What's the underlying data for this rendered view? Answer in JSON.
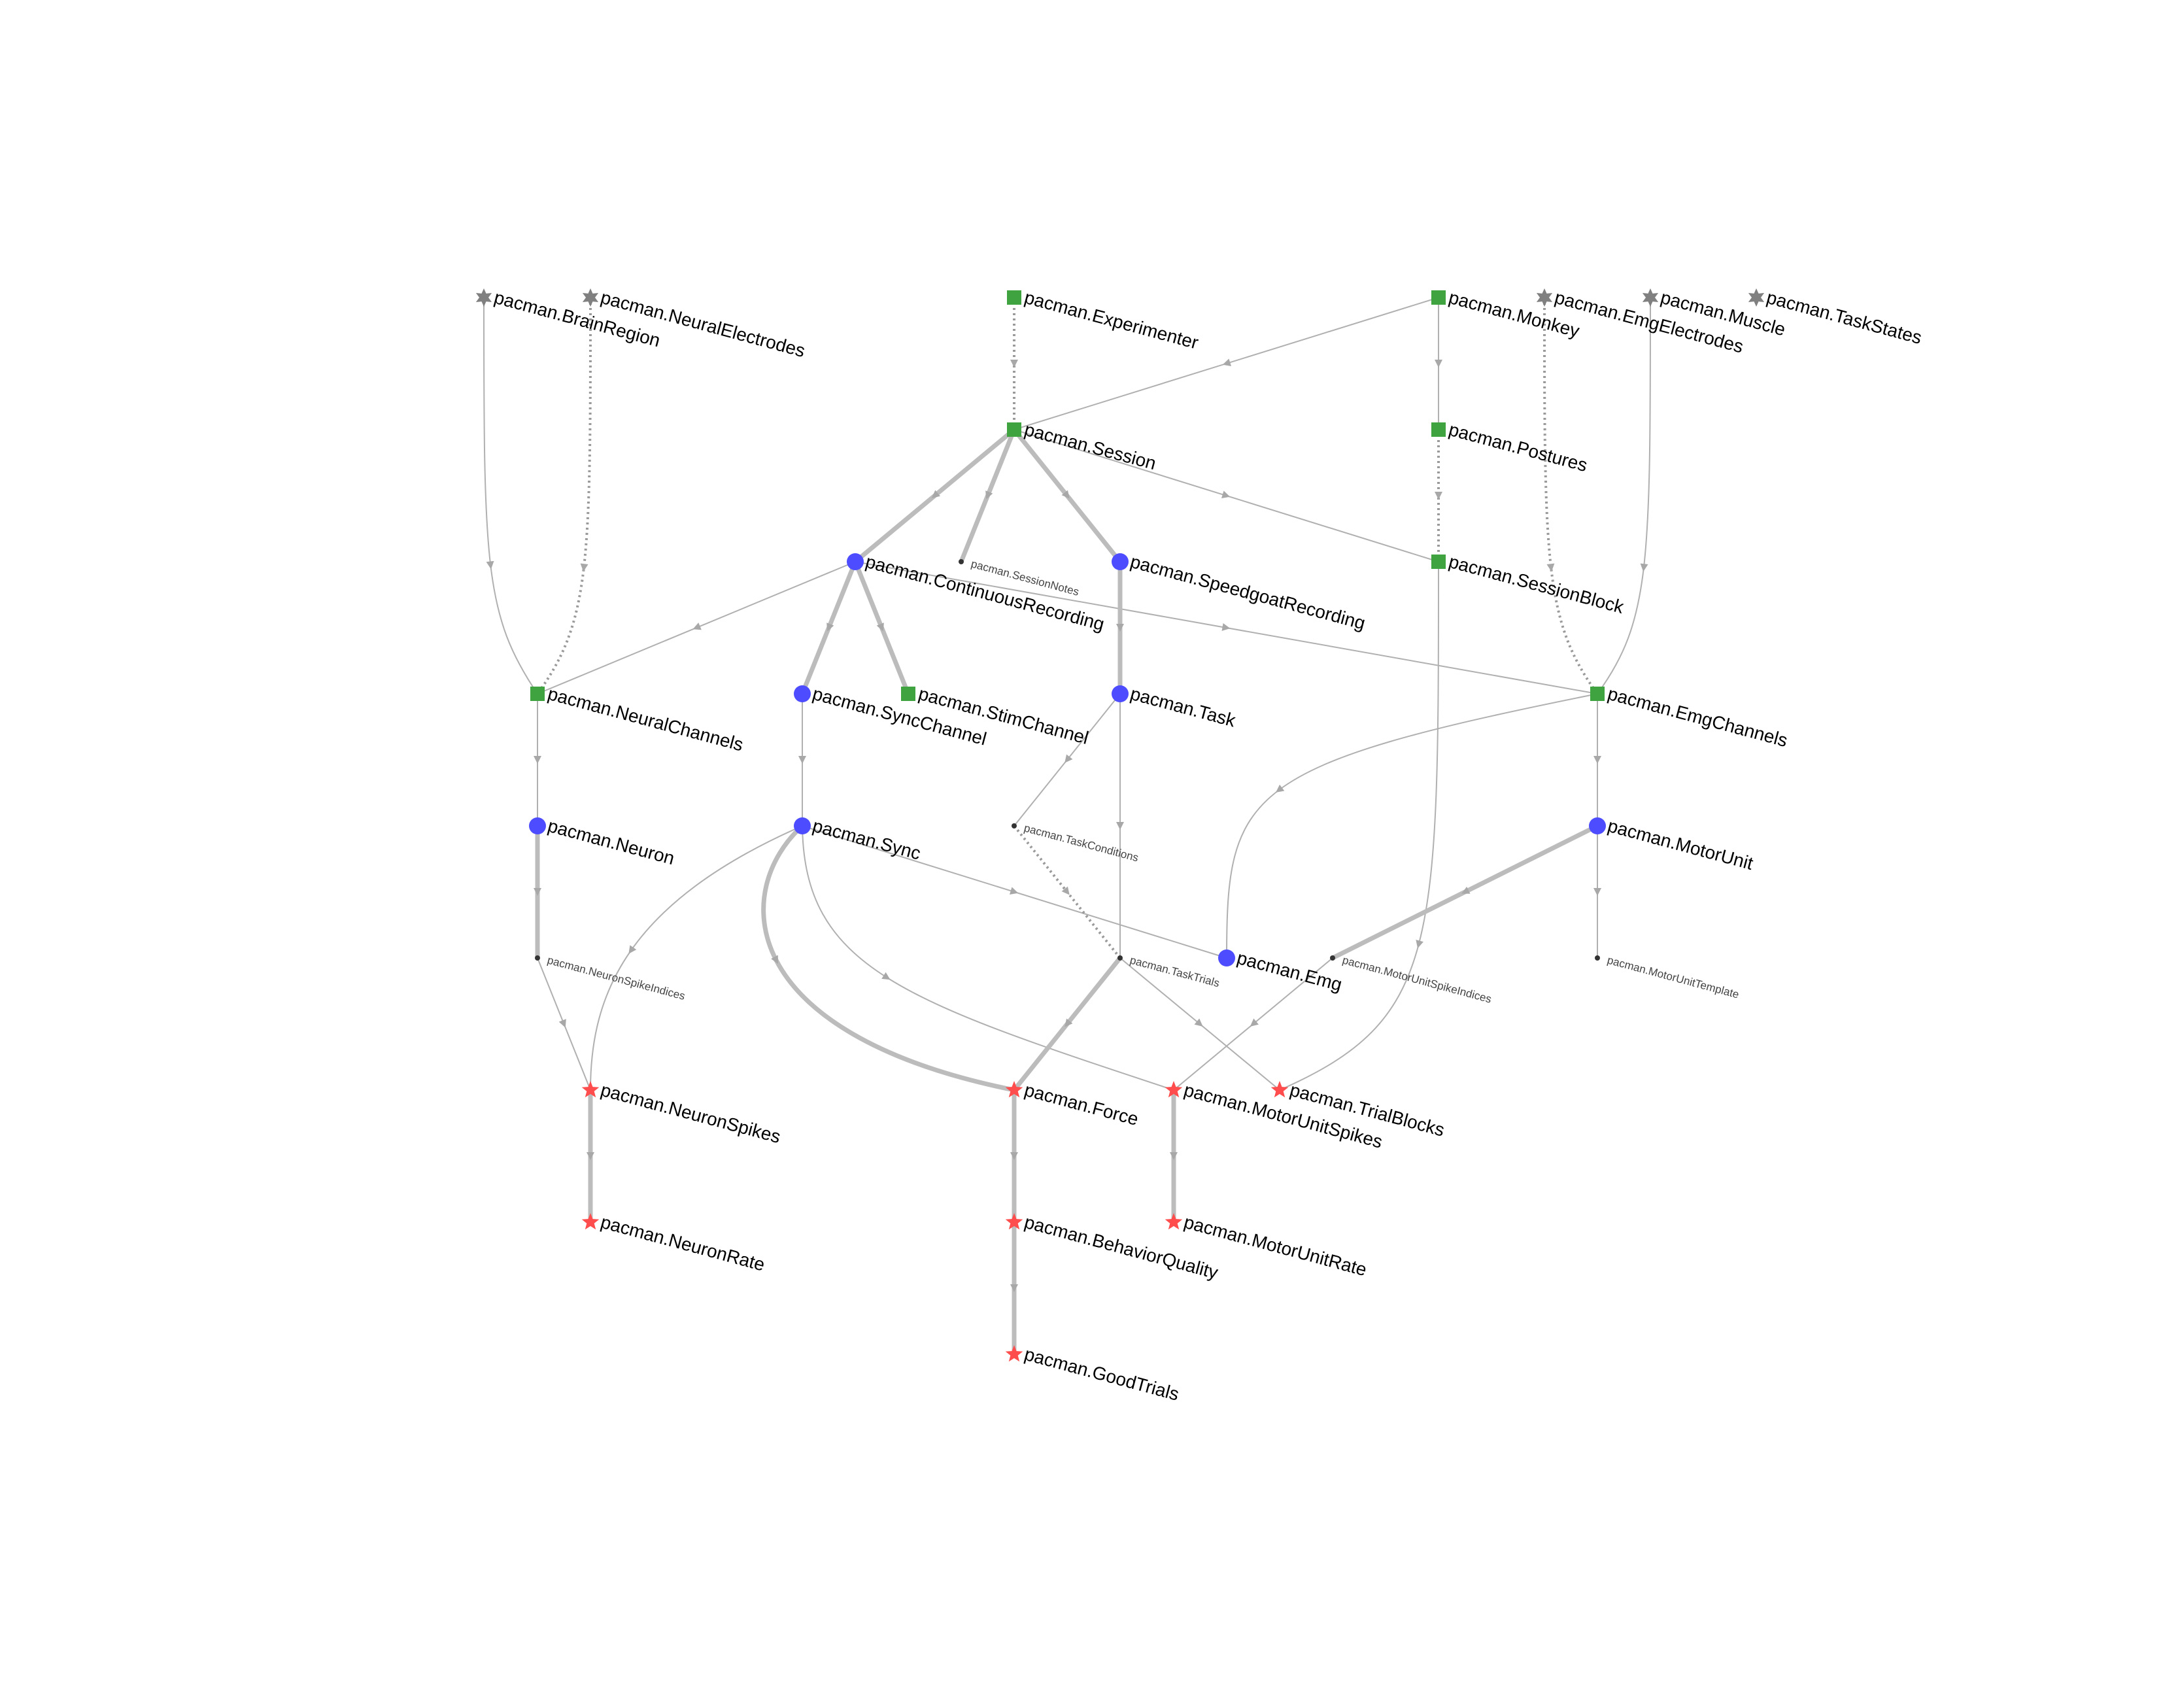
{
  "colors": {
    "lookup": "#808080",
    "manual": "#3fa33f",
    "imported": "#4d4dff",
    "computed": "#ff4d4d",
    "part": "#333333",
    "edge": "#b0b0b0"
  },
  "legend_types": {
    "star6": "lookup (gray six-point star)",
    "square": "manual (green square)",
    "circle": "imported (blue circle)",
    "star5": "computed (red star)",
    "dot": "part table (small dark dot)"
  },
  "nodes": [
    {
      "id": "pacman.BrainRegion",
      "label": "pacman.BrainRegion",
      "type": "star6"
    },
    {
      "id": "pacman.NeuralElectrodes",
      "label": "pacman.NeuralElectrodes",
      "type": "star6"
    },
    {
      "id": "pacman.Experimenter",
      "label": "pacman.Experimenter",
      "type": "square"
    },
    {
      "id": "pacman.Monkey",
      "label": "pacman.Monkey",
      "type": "square"
    },
    {
      "id": "pacman.EmgElectrodes",
      "label": "pacman.EmgElectrodes",
      "type": "star6"
    },
    {
      "id": "pacman.Muscle",
      "label": "pacman.Muscle",
      "type": "star6"
    },
    {
      "id": "pacman.TaskStates",
      "label": "pacman.TaskStates",
      "type": "star6"
    },
    {
      "id": "pacman.Session",
      "label": "pacman.Session",
      "type": "square"
    },
    {
      "id": "pacman.Postures",
      "label": "pacman.Postures",
      "type": "square"
    },
    {
      "id": "pacman.ContinuousRecording",
      "label": "pacman.ContinuousRecording",
      "type": "circle"
    },
    {
      "id": "pacman.SessionNotes",
      "label": "pacman.SessionNotes",
      "type": "dot"
    },
    {
      "id": "pacman.SpeedgoatRecording",
      "label": "pacman.SpeedgoatRecording",
      "type": "circle"
    },
    {
      "id": "pacman.SessionBlock",
      "label": "pacman.SessionBlock",
      "type": "square"
    },
    {
      "id": "pacman.NeuralChannels",
      "label": "pacman.NeuralChannels",
      "type": "square"
    },
    {
      "id": "pacman.SyncChannel",
      "label": "pacman.SyncChannel",
      "type": "circle"
    },
    {
      "id": "pacman.StimChannel",
      "label": "pacman.StimChannel",
      "type": "square"
    },
    {
      "id": "pacman.Task",
      "label": "pacman.Task",
      "type": "circle"
    },
    {
      "id": "pacman.EmgChannels",
      "label": "pacman.EmgChannels",
      "type": "square"
    },
    {
      "id": "pacman.Neuron",
      "label": "pacman.Neuron",
      "type": "circle"
    },
    {
      "id": "pacman.Sync",
      "label": "pacman.Sync",
      "type": "circle"
    },
    {
      "id": "pacman.TaskConditions",
      "label": "pacman.TaskConditions",
      "type": "dot"
    },
    {
      "id": "pacman.MotorUnit",
      "label": "pacman.MotorUnit",
      "type": "circle"
    },
    {
      "id": "pacman.NeuronSpikeIndices",
      "label": "pacman.NeuronSpikeIndices",
      "type": "dot"
    },
    {
      "id": "pacman.TaskTrials",
      "label": "pacman.TaskTrials",
      "type": "dot"
    },
    {
      "id": "pacman.Emg",
      "label": "pacman.Emg",
      "type": "circle"
    },
    {
      "id": "pacman.MotorUnitSpikeIndices",
      "label": "pacman.MotorUnitSpikeIndices",
      "type": "dot"
    },
    {
      "id": "pacman.MotorUnitTemplate",
      "label": "pacman.MotorUnitTemplate",
      "type": "dot"
    },
    {
      "id": "pacman.NeuronSpikes",
      "label": "pacman.NeuronSpikes",
      "type": "star5"
    },
    {
      "id": "pacman.Force",
      "label": "pacman.Force",
      "type": "star5"
    },
    {
      "id": "pacman.MotorUnitSpikes",
      "label": "pacman.MotorUnitSpikes",
      "type": "star5"
    },
    {
      "id": "pacman.TrialBlocks",
      "label": "pacman.TrialBlocks",
      "type": "star5"
    },
    {
      "id": "pacman.NeuronRate",
      "label": "pacman.NeuronRate",
      "type": "star5"
    },
    {
      "id": "pacman.MotorUnitRate",
      "label": "pacman.MotorUnitRate",
      "type": "star5"
    },
    {
      "id": "pacman.BehaviorQuality",
      "label": "pacman.BehaviorQuality",
      "type": "star5"
    },
    {
      "id": "pacman.GoodTrials",
      "label": "pacman.GoodTrials",
      "type": "star5"
    }
  ],
  "edges": [
    {
      "from": "pacman.BrainRegion",
      "to": "pacman.NeuralChannels",
      "style": "thin"
    },
    {
      "from": "pacman.NeuralElectrodes",
      "to": "pacman.NeuralChannels",
      "style": "dotted"
    },
    {
      "from": "pacman.Experimenter",
      "to": "pacman.Session",
      "style": "dotted"
    },
    {
      "from": "pacman.Monkey",
      "to": "pacman.Session",
      "style": "thin"
    },
    {
      "from": "pacman.Monkey",
      "to": "pacman.Postures",
      "style": "thin"
    },
    {
      "from": "pacman.EmgElectrodes",
      "to": "pacman.EmgChannels",
      "style": "dotted"
    },
    {
      "from": "pacman.Muscle",
      "to": "pacman.EmgChannels",
      "style": "thin"
    },
    {
      "from": "pacman.Session",
      "to": "pacman.ContinuousRecording",
      "style": "thick"
    },
    {
      "from": "pacman.Session",
      "to": "pacman.SessionNotes",
      "style": "thick"
    },
    {
      "from": "pacman.Session",
      "to": "pacman.SpeedgoatRecording",
      "style": "thick"
    },
    {
      "from": "pacman.Session",
      "to": "pacman.SessionBlock",
      "style": "thin"
    },
    {
      "from": "pacman.Postures",
      "to": "pacman.SessionBlock",
      "style": "dotted"
    },
    {
      "from": "pacman.ContinuousRecording",
      "to": "pacman.NeuralChannels",
      "style": "thin"
    },
    {
      "from": "pacman.ContinuousRecording",
      "to": "pacman.SyncChannel",
      "style": "thick"
    },
    {
      "from": "pacman.ContinuousRecording",
      "to": "pacman.StimChannel",
      "style": "thick"
    },
    {
      "from": "pacman.ContinuousRecording",
      "to": "pacman.EmgChannels",
      "style": "thin"
    },
    {
      "from": "pacman.SpeedgoatRecording",
      "to": "pacman.Task",
      "style": "thick"
    },
    {
      "from": "pacman.NeuralChannels",
      "to": "pacman.Neuron",
      "style": "thin"
    },
    {
      "from": "pacman.SyncChannel",
      "to": "pacman.Sync",
      "style": "thin"
    },
    {
      "from": "pacman.Task",
      "to": "pacman.TaskConditions",
      "style": "thin"
    },
    {
      "from": "pacman.Task",
      "to": "pacman.TaskTrials",
      "style": "thin"
    },
    {
      "from": "pacman.EmgChannels",
      "to": "pacman.Emg",
      "style": "thin"
    },
    {
      "from": "pacman.EmgChannels",
      "to": "pacman.MotorUnit",
      "style": "thin"
    },
    {
      "from": "pacman.Neuron",
      "to": "pacman.NeuronSpikeIndices",
      "style": "thick"
    },
    {
      "from": "pacman.NeuronSpikeIndices",
      "to": "pacman.NeuronSpikes",
      "style": "thin"
    },
    {
      "from": "pacman.Sync",
      "to": "pacman.NeuronSpikes",
      "style": "thin"
    },
    {
      "from": "pacman.Sync",
      "to": "pacman.Force",
      "style": "thick"
    },
    {
      "from": "pacman.Sync",
      "to": "pacman.Emg",
      "style": "thin"
    },
    {
      "from": "pacman.Sync",
      "to": "pacman.MotorUnitSpikes",
      "style": "thin"
    },
    {
      "from": "pacman.TaskConditions",
      "to": "pacman.TaskTrials",
      "style": "dotted"
    },
    {
      "from": "pacman.TaskTrials",
      "to": "pacman.Force",
      "style": "thick"
    },
    {
      "from": "pacman.TaskTrials",
      "to": "pacman.TrialBlocks",
      "style": "thin"
    },
    {
      "from": "pacman.SessionBlock",
      "to": "pacman.TrialBlocks",
      "style": "thin"
    },
    {
      "from": "pacman.MotorUnit",
      "to": "pacman.MotorUnitSpikeIndices",
      "style": "thick"
    },
    {
      "from": "pacman.MotorUnit",
      "to": "pacman.MotorUnitTemplate",
      "style": "thin"
    },
    {
      "from": "pacman.MotorUnitSpikeIndices",
      "to": "pacman.MotorUnitSpikes",
      "style": "thin"
    },
    {
      "from": "pacman.NeuronSpikes",
      "to": "pacman.NeuronRate",
      "style": "thick"
    },
    {
      "from": "pacman.Force",
      "to": "pacman.BehaviorQuality",
      "style": "thick"
    },
    {
      "from": "pacman.BehaviorQuality",
      "to": "pacman.GoodTrials",
      "style": "thick"
    },
    {
      "from": "pacman.MotorUnitSpikes",
      "to": "pacman.MotorUnitRate",
      "style": "thick"
    }
  ]
}
